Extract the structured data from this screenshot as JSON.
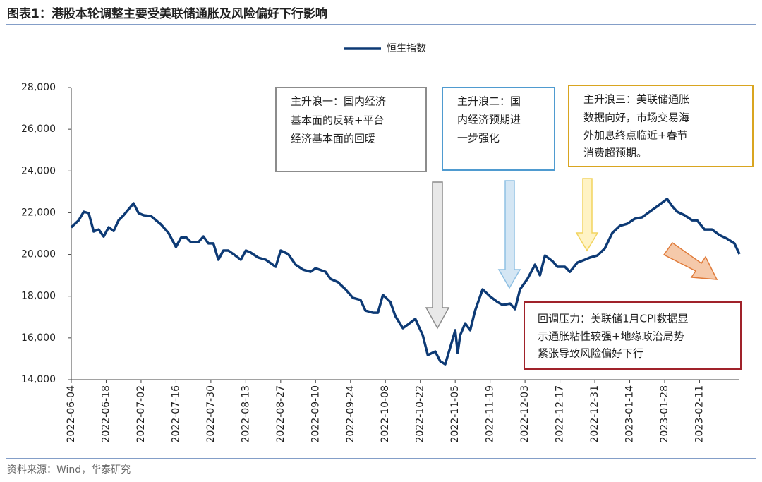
{
  "title": "图表1：港股本轮调整主要受美联储通胀及风险偏好下行影响",
  "source": "资料来源：Wind，华泰研究",
  "chart_data": {
    "type": "line",
    "x": [
      "2022-06-04",
      "2022-06-07",
      "2022-06-09",
      "2022-06-11",
      "2022-06-13",
      "2022-06-15",
      "2022-06-17",
      "2022-06-19",
      "2022-06-21",
      "2022-06-23",
      "2022-06-25",
      "2022-06-29",
      "2022-07-01",
      "2022-07-03",
      "2022-07-06",
      "2022-07-08",
      "2022-07-10",
      "2022-07-13",
      "2022-07-16",
      "2022-07-18",
      "2022-07-20",
      "2022-07-22",
      "2022-07-25",
      "2022-07-27",
      "2022-07-29",
      "2022-07-31",
      "2022-08-02",
      "2022-08-04",
      "2022-08-06",
      "2022-08-08",
      "2022-08-11",
      "2022-08-13",
      "2022-08-15",
      "2022-08-18",
      "2022-08-21",
      "2022-08-25",
      "2022-08-27",
      "2022-08-30",
      "2022-09-02",
      "2022-09-05",
      "2022-09-08",
      "2022-09-10",
      "2022-09-14",
      "2022-09-16",
      "2022-09-19",
      "2022-09-22",
      "2022-09-25",
      "2022-09-28",
      "2022-09-30",
      "2022-10-03",
      "2022-10-05",
      "2022-10-07",
      "2022-10-10",
      "2022-10-12",
      "2022-10-15",
      "2022-10-17",
      "2022-10-20",
      "2022-10-23",
      "2022-10-25",
      "2022-10-28",
      "2022-10-30",
      "2022-11-01",
      "2022-11-03",
      "2022-11-05",
      "2022-11-06",
      "2022-11-07",
      "2022-11-09",
      "2022-11-11",
      "2022-11-13",
      "2022-11-16",
      "2022-11-19",
      "2022-11-22",
      "2022-11-24",
      "2022-11-27",
      "2022-11-29",
      "2022-12-01",
      "2022-12-04",
      "2022-12-07",
      "2022-12-09",
      "2022-12-11",
      "2022-12-14",
      "2022-12-16",
      "2022-12-19",
      "2022-12-21",
      "2022-12-24",
      "2022-12-27",
      "2022-12-29",
      "2023-01-01",
      "2023-01-04",
      "2023-01-07",
      "2023-01-10",
      "2023-01-13",
      "2023-01-16",
      "2023-01-19",
      "2023-01-22",
      "2023-01-26",
      "2023-01-29",
      "2023-01-31",
      "2023-02-02",
      "2023-02-05",
      "2023-02-08",
      "2023-02-10",
      "2023-02-13",
      "2023-02-16",
      "2023-02-19",
      "2023-02-22",
      "2023-02-25",
      "2023-02-27"
    ],
    "series": [
      {
        "name": "恒生指数",
        "color": "#0d3a75",
        "values": [
          21300,
          21640,
          22050,
          21980,
          21100,
          21200,
          20860,
          21300,
          21130,
          21640,
          21880,
          22450,
          21980,
          21880,
          21840,
          21640,
          21440,
          21030,
          20360,
          20800,
          20830,
          20590,
          20590,
          20860,
          20530,
          20530,
          19750,
          20190,
          20190,
          20020,
          19750,
          20190,
          20090,
          19850,
          19750,
          19410,
          20190,
          20020,
          19510,
          19270,
          19170,
          19340,
          19170,
          18830,
          18670,
          18330,
          17920,
          17820,
          17310,
          17210,
          17210,
          18060,
          17720,
          17040,
          16470,
          16640,
          16910,
          16130,
          15180,
          15350,
          14880,
          14740,
          15550,
          16370,
          15280,
          16130,
          16700,
          16370,
          17310,
          18330,
          17990,
          17720,
          17580,
          17650,
          17380,
          18330,
          18830,
          19510,
          19000,
          19950,
          19680,
          19410,
          19410,
          19170,
          19610,
          19750,
          19850,
          19950,
          20290,
          21030,
          21370,
          21470,
          21710,
          21780,
          22050,
          22390,
          22660,
          22320,
          22050,
          21880,
          21640,
          21640,
          21200,
          21200,
          20930,
          20760,
          20530,
          20020
        ]
      }
    ],
    "xlim": [
      "2022-06-04",
      "2023-02-27"
    ],
    "xticks": [
      "2022-06-04",
      "2022-06-18",
      "2022-07-02",
      "2022-07-16",
      "2022-07-30",
      "2022-08-13",
      "2022-08-27",
      "2022-09-10",
      "2022-09-24",
      "2022-10-08",
      "2022-10-22",
      "2022-11-05",
      "2022-11-19",
      "2022-12-03",
      "2022-12-17",
      "2022-12-31",
      "2023-01-14",
      "2023-01-28",
      "2023-02-11"
    ],
    "ylim": [
      14000,
      28000
    ],
    "yticks": [
      {
        "value": 14000,
        "label": "14,000"
      },
      {
        "value": 16000,
        "label": "16,000"
      },
      {
        "value": 18000,
        "label": "18,000"
      },
      {
        "value": 20000,
        "label": "20,000"
      },
      {
        "value": 22000,
        "label": "22,000"
      },
      {
        "value": 24000,
        "label": "24,000"
      },
      {
        "value": 26000,
        "label": "26,000"
      },
      {
        "value": 28000,
        "label": "28,000"
      }
    ],
    "annotations": [
      {
        "lines": [
          "主升浪一：国内经济",
          "基本面的反转+平台",
          "经济基本面的回暖"
        ]
      },
      {
        "lines": [
          "主升浪二：国",
          "内经济预期进",
          "一步强化"
        ]
      },
      {
        "lines": [
          "主升浪三：美联储通胀",
          "数据向好，市场交易海",
          "外加息终点临近+春节",
          "消费超预期。"
        ]
      },
      {
        "lines": [
          "回调压力：美联储1月CPI数据显",
          "示通胀粘性较强+地缘政治局势",
          "紧张导致风险偏好下行"
        ]
      }
    ]
  }
}
